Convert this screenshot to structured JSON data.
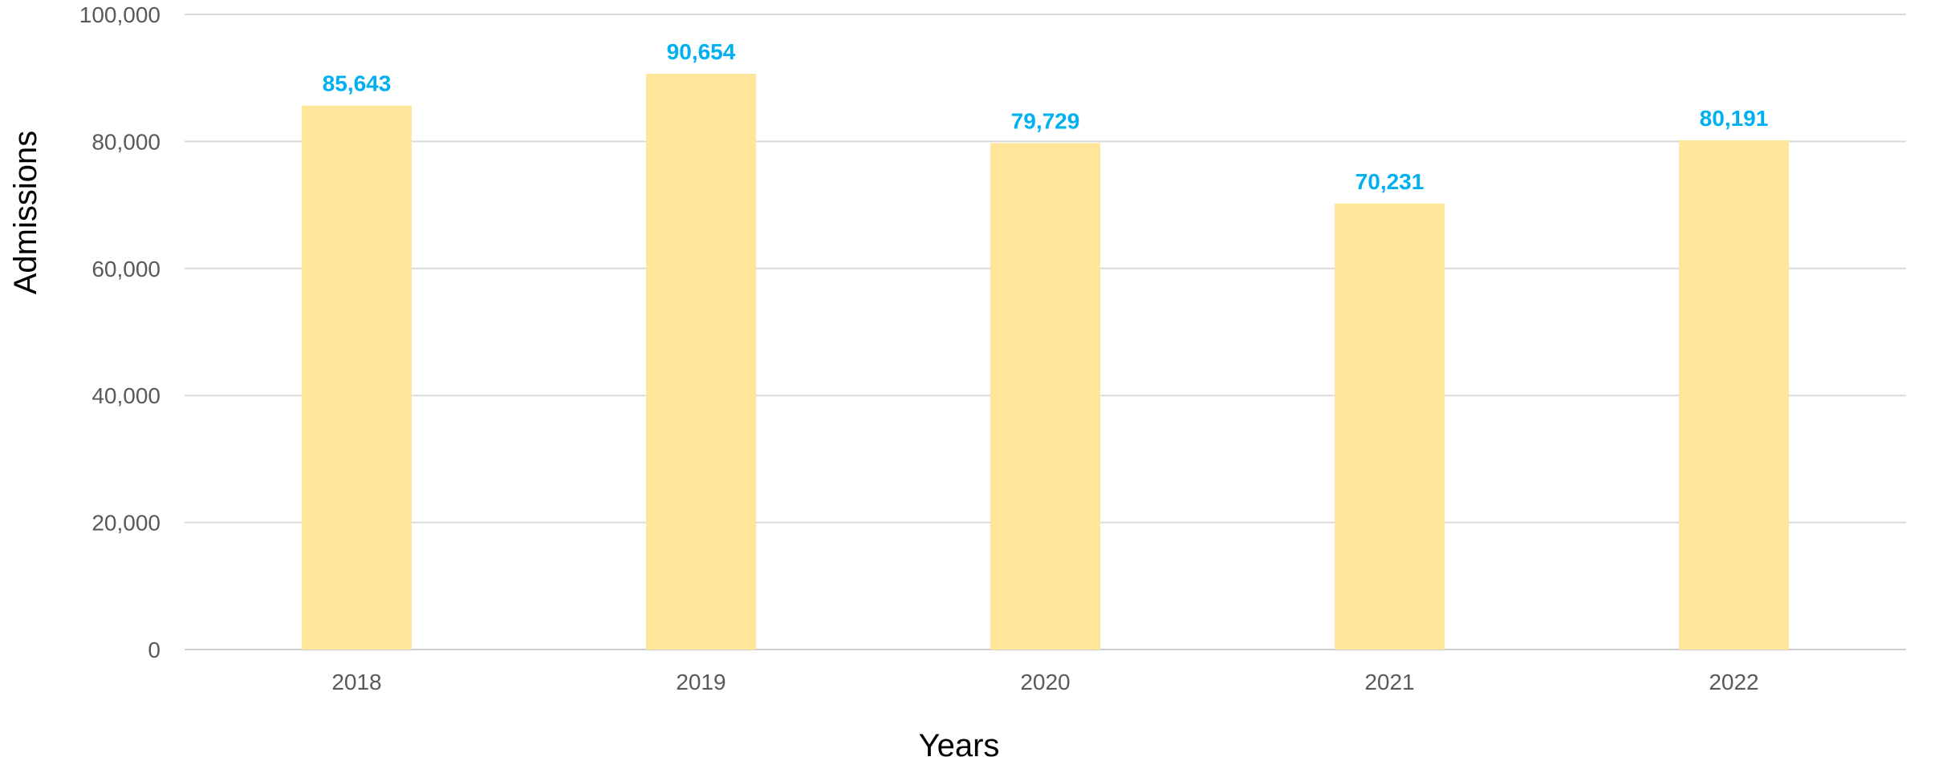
{
  "chart_data": {
    "type": "bar",
    "title": "",
    "xlabel": "Years",
    "ylabel": "Admissions",
    "categories": [
      "2018",
      "2019",
      "2020",
      "2021",
      "2022"
    ],
    "values": [
      85643,
      90654,
      79729,
      70231,
      80191
    ],
    "data_labels": [
      "85,643",
      "90,654",
      "79,729",
      "70,231",
      "80,191"
    ],
    "ylim": [
      0,
      100000
    ],
    "yticks": [
      0,
      20000,
      40000,
      60000,
      80000,
      100000
    ],
    "ytick_labels": [
      "0",
      "20,000",
      "40,000",
      "60,000",
      "80,000",
      "100,000"
    ],
    "grid": true,
    "legend": "none",
    "colors": {
      "bar": "#ffe699",
      "data_label": "#00b0f0",
      "gridline": "#d9d9d9",
      "tick_text": "#595959"
    }
  }
}
